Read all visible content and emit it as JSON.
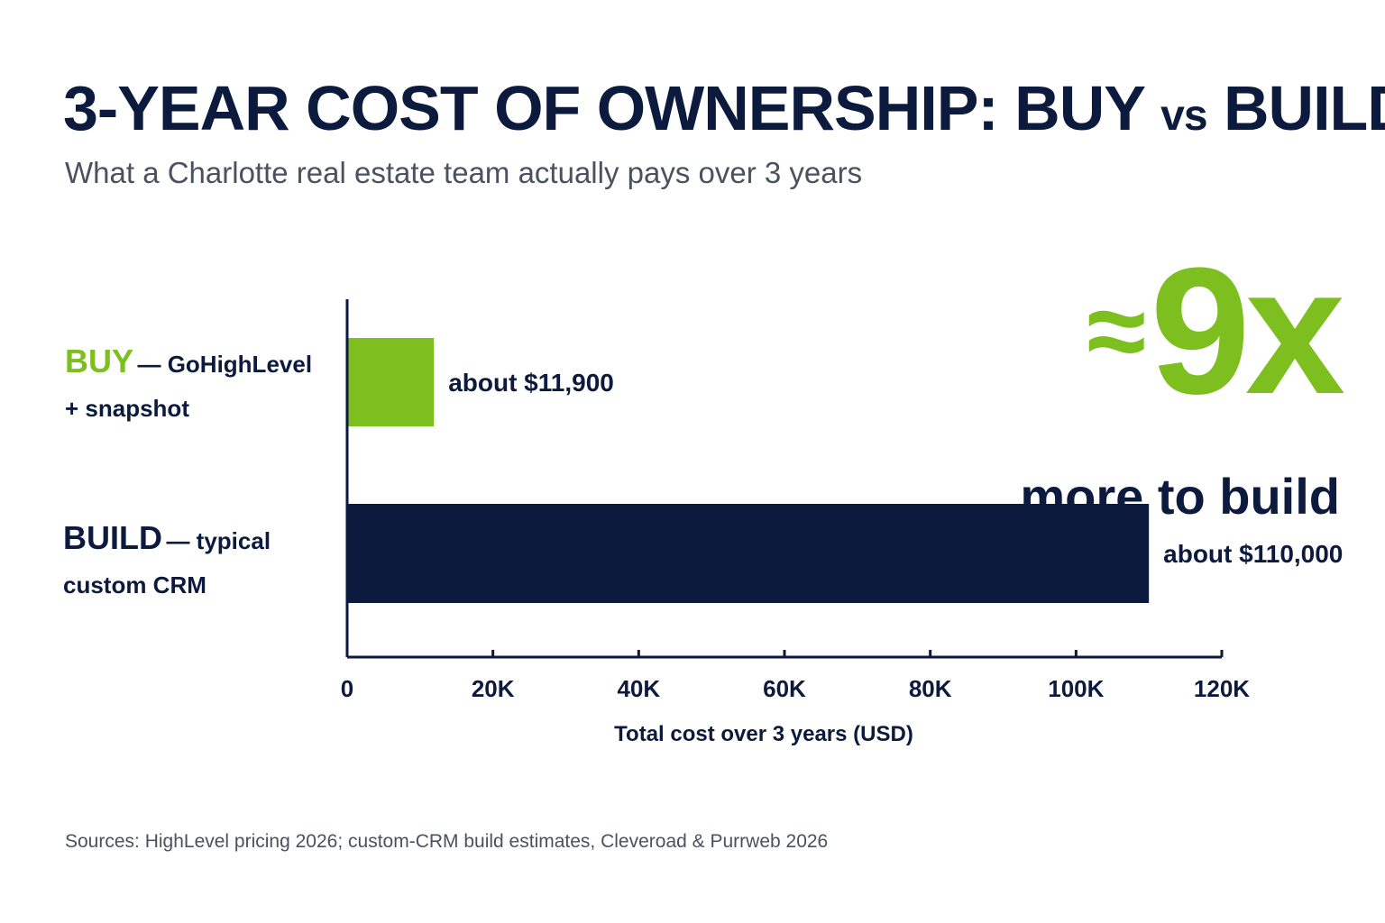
{
  "title_main": "3-YEAR COST OF OWNERSHIP: BUY",
  "title_vs": "vs",
  "title_end": "BUILD",
  "subtitle": "What a Charlotte real estate team actually pays over 3 years",
  "labels": {
    "buy_strong": "BUY",
    "buy_rest": "— GoHighLevel",
    "buy_line2": "+ snapshot",
    "build_strong": "BUILD",
    "build_rest": "— typical",
    "build_line2": "custom CRM"
  },
  "callout": {
    "approx": "≈",
    "multiplier": "9x",
    "subtext": "more to build"
  },
  "sources": "Sources: HighLevel pricing 2026; custom-CRM build estimates, Cleveroad & Purrweb 2026",
  "colors": {
    "accent_green": "#7cbf1e",
    "navy": "#0c1a3e",
    "gray_text": "#4a5260"
  },
  "chart_data": {
    "type": "bar",
    "orientation": "horizontal",
    "categories": [
      "BUY — GoHighLevel + snapshot",
      "BUILD — typical custom CRM"
    ],
    "values": [
      11900,
      110000
    ],
    "value_labels": [
      "about $11,900",
      "about $110,000"
    ],
    "bar_colors": [
      "#7cbf1e",
      "#0c1a3e"
    ],
    "xlabel": "Total cost over 3 years (USD)",
    "xlim": [
      0,
      120000
    ],
    "xticks": [
      0,
      20000,
      40000,
      60000,
      80000,
      100000,
      120000
    ],
    "xtick_labels": [
      "0",
      "20K",
      "40K",
      "60K",
      "80K",
      "100K",
      "120K"
    ],
    "grid": false
  }
}
